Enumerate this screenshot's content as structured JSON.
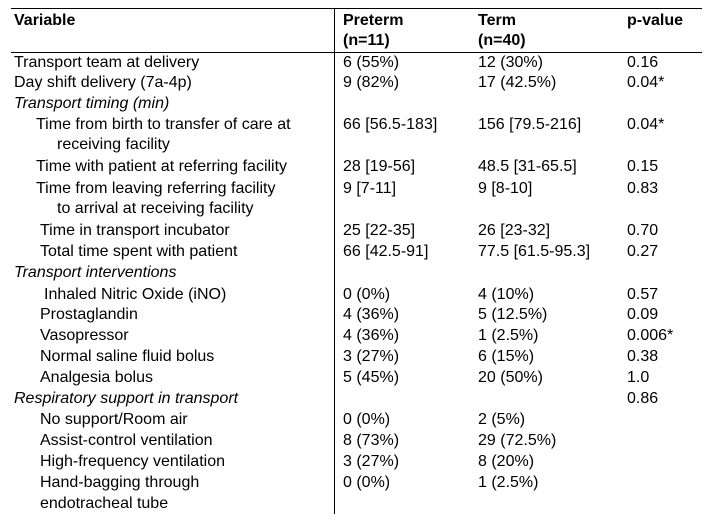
{
  "header": {
    "variable": "Variable",
    "preterm": "Preterm",
    "preterm_n": "(n=11)",
    "term": "Term",
    "term_n": "(n=40)",
    "pvalue": "p-value"
  },
  "rows": [
    {
      "label": "Transport team at delivery",
      "preterm": "6 (55%)",
      "term": "12 (30%)",
      "p": "0.16"
    },
    {
      "label": "Day shift delivery (7a-4p)",
      "preterm": "9 (82%)",
      "term": "17 (42.5%)",
      "p": "0.04*"
    },
    {
      "label": "Transport timing (min)"
    },
    {
      "label": "Time from birth to transfer of care at",
      "label2": "receiving facility",
      "preterm": "66 [56.5-183]",
      "term": "156 [79.5-216]",
      "p": "0.04*"
    },
    {
      "label": "Time with patient at referring facility",
      "preterm": "28 [19-56]",
      "term": "48.5 [31-65.5]",
      "p": "0.15"
    },
    {
      "label": "Time from leaving referring facility",
      "label2": "to arrival at receiving facility",
      "preterm": "9 [7-11]",
      "term": "9 [8-10]",
      "p": "0.83"
    },
    {
      "label": "Time in transport incubator",
      "preterm": "25 [22-35]",
      "term": "26 [23-32]",
      "p": "0.70"
    },
    {
      "label": "Total time spent with patient",
      "preterm": "66 [42.5-91]",
      "term": "77.5 [61.5-95.3]",
      "p": "0.27"
    },
    {
      "label": "Transport interventions"
    },
    {
      "label": "Inhaled Nitric Oxide (iNO)",
      "preterm": "0 (0%)",
      "term": "4 (10%)",
      "p": "0.57"
    },
    {
      "label": "Prostaglandin",
      "preterm": "4 (36%)",
      "term": "5 (12.5%)",
      "p": "0.09"
    },
    {
      "label": "Vasopressor",
      "preterm": "4 (36%)",
      "term": "1 (2.5%)",
      "p": "0.006*"
    },
    {
      "label": "Normal saline fluid bolus",
      "preterm": "3 (27%)",
      "term": "6 (15%)",
      "p": "0.38"
    },
    {
      "label": "Analgesia bolus",
      "preterm": "5 (45%)",
      "term": "20 (50%)",
      "p": "1.0"
    },
    {
      "label": "Respiratory support in transport",
      "p": "0.86"
    },
    {
      "label": "No support/Room air",
      "preterm": "0 (0%)",
      "term": "2 (5%)"
    },
    {
      "label": "Assist-control ventilation",
      "preterm": "8 (73%)",
      "term": "29 (72.5%)"
    },
    {
      "label": "High-frequency ventilation",
      "preterm": "3 (27%)",
      "term": "8 (20%)"
    },
    {
      "label": "Hand-bagging through",
      "label2": "endotracheal tube",
      "preterm": "0 (0%)",
      "term": "1 (2.5%)"
    }
  ]
}
